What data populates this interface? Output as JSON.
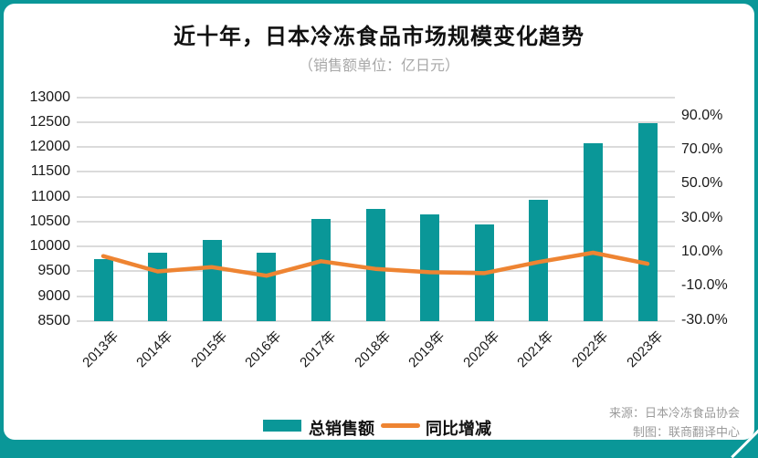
{
  "title": "近十年，日本冷冻食品市场规模变化趋势",
  "subtitle": "（销售额单位：亿日元）",
  "legend": {
    "bar_label": "总销售额",
    "line_label": "同比增减"
  },
  "source": {
    "line1": "来源：日本冷冻食品协会",
    "line2": "制图：联商翻译中心"
  },
  "colors": {
    "teal": "#0A9798",
    "orange": "#EE8432",
    "grid": "#DBDBDB",
    "axis_text": "#1A1A1A",
    "muted_text": "#A8A8A8",
    "source_text": "#9B9B9B",
    "card_bg": "#FFFFFF"
  },
  "chart_data": {
    "type": "bar",
    "subtype": "bar-line-combo",
    "categories": [
      "2013年",
      "2014年",
      "2015年",
      "2016年",
      "2017年",
      "2018年",
      "2019年",
      "2020年",
      "2021年",
      "2022年",
      "2023年"
    ],
    "series": [
      {
        "name": "总销售额",
        "type": "bar",
        "axis": "left",
        "unit": "亿日元",
        "values": [
          9750,
          9870,
          10130,
          9880,
          10560,
          10760,
          10650,
          10440,
          10930,
          12070,
          12480
        ]
      },
      {
        "name": "同比增减",
        "type": "line",
        "axis": "right",
        "unit": "%",
        "values": [
          7.5,
          -1.5,
          1.0,
          -4.0,
          4.5,
          0.0,
          -2.0,
          -2.5,
          4.0,
          9.5,
          3.0
        ]
      }
    ],
    "left_axis": {
      "min": 8500,
      "max": 13000,
      "step": 500,
      "tick_labels": [
        "13000",
        "12500",
        "12000",
        "11500",
        "11000",
        "10500",
        "10000",
        "9500",
        "9000",
        "8500"
      ]
    },
    "right_axis": {
      "min": -30,
      "max": 90,
      "step": 20,
      "tick_labels": [
        "90.0%",
        "70.0%",
        "50.0%",
        "30.0%",
        "10.0%",
        "-10.0%",
        "-30.0%"
      ]
    },
    "grid": true,
    "legend_position": "bottom"
  }
}
